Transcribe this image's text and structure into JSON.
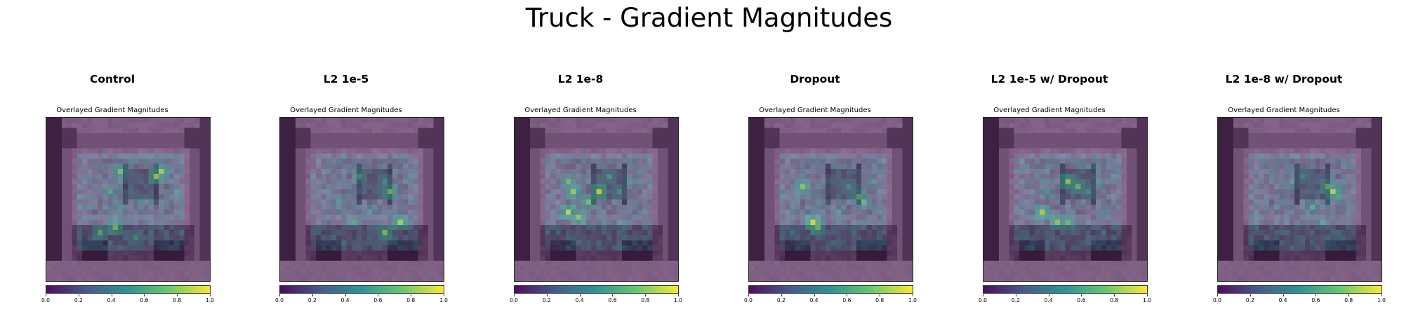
{
  "title": "Truck - Gradient Magnitudes",
  "colorbar": {
    "ticks": [
      "0.0",
      "0.2",
      "0.4",
      "0.6",
      "0.8",
      "1.0"
    ],
    "colors": [
      "#440154",
      "#3b528b",
      "#21908d",
      "#5dc863",
      "#fde725"
    ]
  },
  "chart_data": [
    {
      "type": "heatmap",
      "title": "Control",
      "subtitle": "Overlayed Gradient Magnitudes",
      "grid_size": [
        32,
        32
      ],
      "colorbar_range": [
        0.0,
        1.0
      ],
      "hotspots": [
        [
          14,
          10,
          0.75
        ],
        [
          21,
          11,
          0.9
        ],
        [
          22,
          10,
          0.85
        ],
        [
          12,
          14,
          0.6
        ],
        [
          14,
          17,
          0.55
        ],
        [
          18,
          16,
          0.5
        ],
        [
          10,
          22,
          0.7
        ],
        [
          13,
          21,
          0.8
        ],
        [
          17,
          23,
          0.55
        ],
        [
          25,
          14,
          0.45
        ]
      ]
    },
    {
      "type": "heatmap",
      "title": "L2 1e-5",
      "subtitle": "Overlayed Gradient Magnitudes",
      "grid_size": [
        32,
        32
      ],
      "colorbar_range": [
        0.0,
        1.0
      ],
      "hotspots": [
        [
          15,
          11,
          0.6
        ],
        [
          20,
          12,
          0.55
        ],
        [
          21,
          14,
          0.8
        ],
        [
          11,
          16,
          0.5
        ],
        [
          23,
          20,
          0.85
        ],
        [
          20,
          22,
          0.8
        ],
        [
          14,
          20,
          0.6
        ],
        [
          17,
          18,
          0.45
        ],
        [
          25,
          10,
          0.4
        ]
      ]
    },
    {
      "type": "heatmap",
      "title": "L2 1e-8",
      "subtitle": "Overlayed Gradient Magnitudes",
      "grid_size": [
        32,
        32
      ],
      "colorbar_range": [
        0.0,
        1.0
      ],
      "hotspots": [
        [
          10,
          12,
          0.7
        ],
        [
          11,
          14,
          0.85
        ],
        [
          16,
          14,
          0.95
        ],
        [
          10,
          18,
          0.9
        ],
        [
          12,
          19,
          0.8
        ],
        [
          14,
          16,
          0.75
        ],
        [
          18,
          11,
          0.6
        ],
        [
          20,
          14,
          0.55
        ],
        [
          22,
          12,
          0.5
        ]
      ]
    },
    {
      "type": "heatmap",
      "title": "Dropout",
      "subtitle": "Overlayed Gradient Magnitudes",
      "grid_size": [
        32,
        32
      ],
      "colorbar_range": [
        0.0,
        1.0
      ],
      "hotspots": [
        [
          10,
          13,
          0.8
        ],
        [
          12,
          20,
          0.95
        ],
        [
          13,
          21,
          0.8
        ],
        [
          21,
          15,
          0.7
        ],
        [
          22,
          16,
          0.65
        ],
        [
          17,
          18,
          0.5
        ],
        [
          8,
          22,
          0.45
        ],
        [
          19,
          13,
          0.55
        ],
        [
          24,
          12,
          0.4
        ]
      ]
    },
    {
      "type": "heatmap",
      "title": "L2 1e-5 w/ Dropout",
      "subtitle": "Overlayed Gradient Magnitudes",
      "grid_size": [
        32,
        32
      ],
      "colorbar_range": [
        0.0,
        1.0
      ],
      "hotspots": [
        [
          16,
          12,
          0.85
        ],
        [
          18,
          13,
          0.75
        ],
        [
          11,
          18,
          0.9
        ],
        [
          14,
          20,
          0.8
        ],
        [
          16,
          20,
          0.7
        ],
        [
          20,
          14,
          0.55
        ],
        [
          22,
          12,
          0.5
        ],
        [
          12,
          14,
          0.5
        ],
        [
          23,
          18,
          0.45
        ]
      ]
    },
    {
      "type": "heatmap",
      "title": "L2 1e-8 w/ Dropout",
      "subtitle": "Overlayed Gradient Magnitudes",
      "grid_size": [
        32,
        32
      ],
      "colorbar_range": [
        0.0,
        1.0
      ],
      "hotspots": [
        [
          21,
          13,
          0.75
        ],
        [
          22,
          14,
          0.9
        ],
        [
          18,
          17,
          0.6
        ],
        [
          14,
          12,
          0.45
        ],
        [
          12,
          16,
          0.4
        ],
        [
          20,
          20,
          0.5
        ],
        [
          16,
          11,
          0.5
        ],
        [
          23,
          15,
          0.55
        ]
      ]
    }
  ]
}
